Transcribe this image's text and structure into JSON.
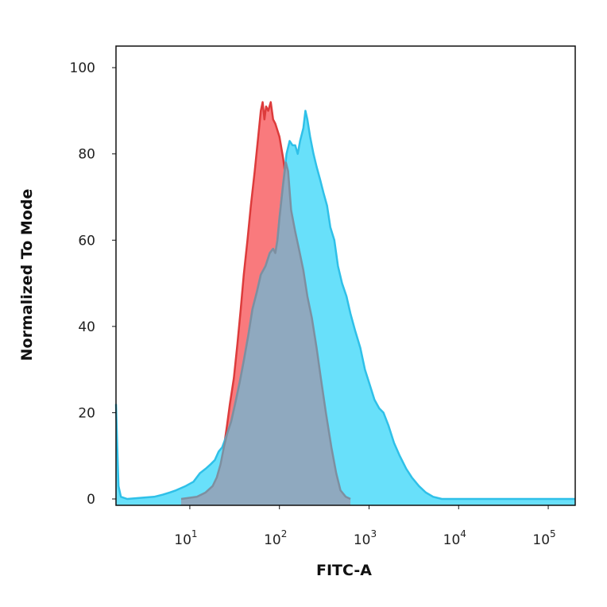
{
  "chart_data": {
    "type": "area",
    "title": "",
    "xlabel": "FITC-A",
    "ylabel": "Normalized To Mode",
    "x_scale": "log",
    "xlim": [
      1.5,
      200000
    ],
    "ylim": [
      0,
      105
    ],
    "grid": false,
    "legend": "none",
    "y_ticks": [
      0,
      20,
      40,
      60,
      80,
      100
    ],
    "x_ticks": [
      {
        "value": 10,
        "base": "10",
        "exp": "1"
      },
      {
        "value": 100,
        "base": "10",
        "exp": "2"
      },
      {
        "value": 1000,
        "base": "10",
        "exp": "3"
      },
      {
        "value": 10000,
        "base": "10",
        "exp": "4"
      },
      {
        "value": 100000,
        "base": "10",
        "exp": "5"
      }
    ],
    "series": [
      {
        "color_fill": "#f97a7d",
        "color_line": "#dd3b3b",
        "points": [
          [
            8,
            0
          ],
          [
            12,
            0.5
          ],
          [
            15,
            1.5
          ],
          [
            18,
            3
          ],
          [
            20,
            5
          ],
          [
            22,
            8
          ],
          [
            24,
            12
          ],
          [
            26,
            17
          ],
          [
            28,
            22
          ],
          [
            31,
            28
          ],
          [
            34,
            36
          ],
          [
            37,
            44
          ],
          [
            40,
            52
          ],
          [
            44,
            60
          ],
          [
            48,
            68
          ],
          [
            53,
            76
          ],
          [
            58,
            84
          ],
          [
            62,
            90
          ],
          [
            65,
            92
          ],
          [
            68,
            88
          ],
          [
            71,
            91
          ],
          [
            75,
            90
          ],
          [
            80,
            92
          ],
          [
            85,
            88
          ],
          [
            90,
            87
          ],
          [
            100,
            84
          ],
          [
            110,
            79
          ],
          [
            120,
            73
          ],
          [
            135,
            67
          ],
          [
            150,
            62
          ],
          [
            165,
            58
          ],
          [
            185,
            53
          ],
          [
            205,
            47
          ],
          [
            230,
            42
          ],
          [
            260,
            35
          ],
          [
            290,
            28
          ],
          [
            330,
            20
          ],
          [
            380,
            12
          ],
          [
            430,
            6
          ],
          [
            480,
            2
          ],
          [
            550,
            0.5
          ],
          [
            620,
            0
          ]
        ]
      },
      {
        "color_fill": "#68e0fa",
        "color_line": "#2fc0e8",
        "points": [
          [
            1.5,
            22
          ],
          [
            1.55,
            12
          ],
          [
            1.6,
            3
          ],
          [
            1.7,
            0.5
          ],
          [
            2,
            0
          ],
          [
            3,
            0.3
          ],
          [
            4,
            0.5
          ],
          [
            5,
            1
          ],
          [
            6,
            1.5
          ],
          [
            7,
            2
          ],
          [
            9,
            3
          ],
          [
            11,
            4
          ],
          [
            13,
            6
          ],
          [
            15,
            7
          ],
          [
            17,
            8
          ],
          [
            19,
            9
          ],
          [
            21,
            11
          ],
          [
            23,
            12
          ],
          [
            26,
            15
          ],
          [
            29,
            18
          ],
          [
            32,
            22
          ],
          [
            36,
            27
          ],
          [
            40,
            32
          ],
          [
            45,
            38
          ],
          [
            50,
            44
          ],
          [
            56,
            48
          ],
          [
            62,
            52
          ],
          [
            70,
            54
          ],
          [
            78,
            57
          ],
          [
            85,
            58
          ],
          [
            90,
            57
          ],
          [
            95,
            60
          ],
          [
            100,
            65
          ],
          [
            110,
            73
          ],
          [
            120,
            80
          ],
          [
            130,
            83
          ],
          [
            140,
            82
          ],
          [
            150,
            82
          ],
          [
            160,
            80
          ],
          [
            170,
            83
          ],
          [
            185,
            86
          ],
          [
            195,
            90
          ],
          [
            205,
            88
          ],
          [
            220,
            84
          ],
          [
            240,
            80
          ],
          [
            260,
            77
          ],
          [
            285,
            74
          ],
          [
            310,
            71
          ],
          [
            340,
            68
          ],
          [
            370,
            63
          ],
          [
            410,
            60
          ],
          [
            450,
            54
          ],
          [
            500,
            50
          ],
          [
            560,
            47
          ],
          [
            620,
            43
          ],
          [
            700,
            39
          ],
          [
            800,
            35
          ],
          [
            900,
            30
          ],
          [
            1000,
            27
          ],
          [
            1150,
            23
          ],
          [
            1300,
            21
          ],
          [
            1450,
            20
          ],
          [
            1650,
            17
          ],
          [
            1900,
            13
          ],
          [
            2200,
            10
          ],
          [
            2600,
            7
          ],
          [
            3000,
            5
          ],
          [
            3600,
            3
          ],
          [
            4300,
            1.5
          ],
          [
            5200,
            0.5
          ],
          [
            6500,
            0
          ],
          [
            200000,
            0
          ]
        ]
      },
      {
        "color_fill": "#8fa9bf",
        "color_line": "#7d8fa0",
        "points": [
          [
            8,
            0
          ],
          [
            12,
            0.5
          ],
          [
            15,
            1.5
          ],
          [
            18,
            3
          ],
          [
            20,
            5
          ],
          [
            22,
            8
          ],
          [
            24,
            12
          ],
          [
            26,
            15
          ],
          [
            29,
            18
          ],
          [
            32,
            22
          ],
          [
            36,
            27
          ],
          [
            40,
            32
          ],
          [
            45,
            38
          ],
          [
            50,
            44
          ],
          [
            56,
            48
          ],
          [
            62,
            52
          ],
          [
            70,
            54
          ],
          [
            78,
            57
          ],
          [
            85,
            58
          ],
          [
            90,
            57
          ],
          [
            95,
            60
          ],
          [
            100,
            65
          ],
          [
            110,
            73
          ],
          [
            118,
            78
          ],
          [
            125,
            76
          ],
          [
            135,
            67
          ],
          [
            150,
            62
          ],
          [
            165,
            58
          ],
          [
            185,
            53
          ],
          [
            205,
            47
          ],
          [
            230,
            42
          ],
          [
            260,
            35
          ],
          [
            290,
            28
          ],
          [
            330,
            20
          ],
          [
            380,
            12
          ],
          [
            430,
            6
          ],
          [
            480,
            2
          ],
          [
            550,
            0.5
          ],
          [
            620,
            0
          ]
        ]
      }
    ]
  }
}
